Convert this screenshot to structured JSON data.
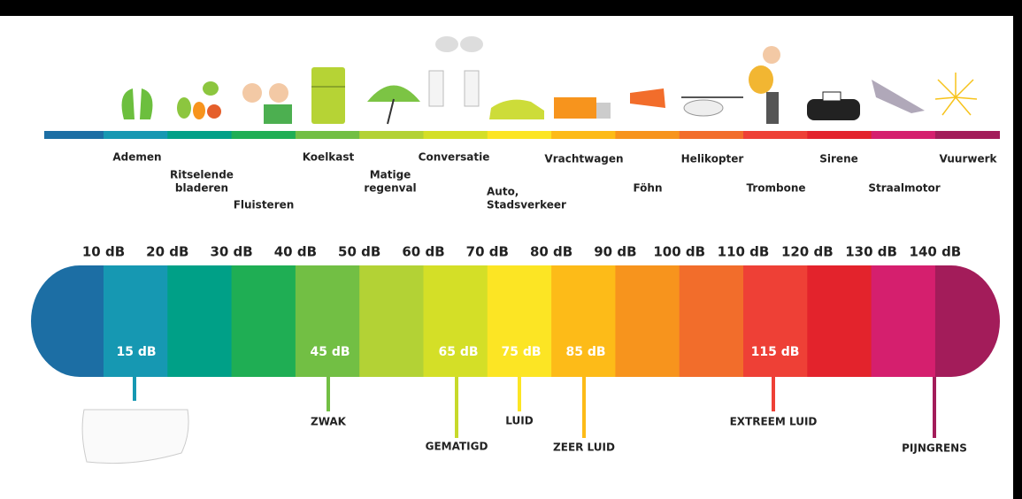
{
  "sources": [
    {
      "lines": [
        "Ademen"
      ]
    },
    {
      "lines": [
        "Ritselende",
        "bladeren"
      ]
    },
    {
      "lines": [
        "Fluisteren"
      ]
    },
    {
      "lines": [
        "Koelkast"
      ]
    },
    {
      "lines": [
        "Matige",
        "regenval"
      ]
    },
    {
      "lines": [
        "Conversatie"
      ]
    },
    {
      "lines": [
        "Auto,",
        "Stadsverkeer"
      ]
    },
    {
      "lines": [
        "Vrachtwagen"
      ]
    },
    {
      "lines": [
        "Föhn"
      ]
    },
    {
      "lines": [
        "Helikopter"
      ]
    },
    {
      "lines": [
        "Trombone"
      ]
    },
    {
      "lines": [
        "Sirene"
      ]
    },
    {
      "lines": [
        "Straalmotor"
      ]
    },
    {
      "lines": [
        "Vuurwerk"
      ]
    }
  ],
  "scale": {
    "ticks": [
      "10 dB",
      "20 dB",
      "30 dB",
      "40 dB",
      "50 dB",
      "60 dB",
      "70 dB",
      "80 dB",
      "90 dB",
      "100 dB",
      "110 dB",
      "120 dB",
      "130 dB",
      "140 dB"
    ]
  },
  "markers": [
    {
      "label": "15 dB"
    },
    {
      "label": "45 dB",
      "category": "ZWAK"
    },
    {
      "label": "65 dB",
      "category": "GEMATIGD"
    },
    {
      "label": "75 dB",
      "category": "LUID"
    },
    {
      "label": "85 dB",
      "category": "ZEER LUID"
    },
    {
      "label": "115 dB",
      "category": "EXTREEM LUID"
    }
  ],
  "threshold": {
    "label": "PIJNGRENS"
  }
}
